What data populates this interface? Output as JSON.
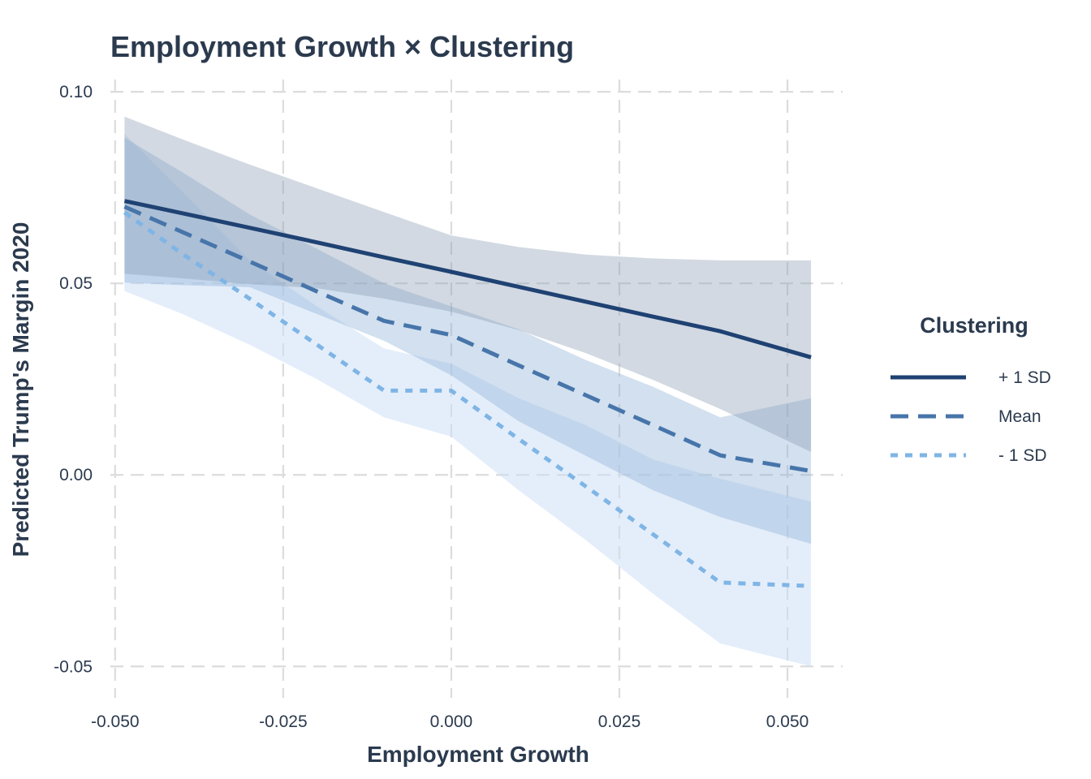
{
  "chart_data": {
    "type": "line",
    "title": "Employment Growth × Clustering",
    "xlabel": "Employment Growth",
    "ylabel": "Predicted Trump's Margin 2020",
    "xlim": [
      -0.0507,
      0.0582
    ],
    "ylim": [
      -0.0582,
      0.1032
    ],
    "x_ticks": [
      -0.05,
      -0.025,
      0.0,
      0.025,
      0.05
    ],
    "x_tick_labels": [
      "-0.050",
      "-0.025",
      "0.000",
      "0.025",
      "0.050"
    ],
    "y_ticks": [
      -0.05,
      0.0,
      0.05,
      0.1
    ],
    "y_tick_labels": [
      "-0.05",
      "0.00",
      "0.05",
      "0.10"
    ],
    "grid": true,
    "legend": {
      "title": "Clustering",
      "position": "right"
    },
    "x": [
      -0.0486,
      -0.04,
      -0.03,
      -0.02,
      -0.01,
      0.0,
      0.01,
      0.02,
      0.03,
      0.04,
      0.0535
    ],
    "series": [
      {
        "name": "+ 1 SD",
        "style": "solid",
        "color": "#1f4273",
        "band_color": "#8a9ab3",
        "band_opacity": 0.38,
        "values": [
          0.0715,
          0.0683,
          0.0645,
          0.0607,
          0.0568,
          0.053,
          0.0491,
          0.0452,
          0.0413,
          0.0375,
          0.0307
        ],
        "lower": [
          0.0525,
          0.0513,
          0.0498,
          0.0487,
          0.046,
          0.0426,
          0.0378,
          0.0318,
          0.0248,
          0.0172,
          0.006
        ],
        "upper": [
          0.0935,
          0.0876,
          0.081,
          0.0748,
          0.0686,
          0.0625,
          0.0595,
          0.0575,
          0.0565,
          0.056,
          0.056
        ]
      },
      {
        "name": "Mean",
        "style": "dashed",
        "color": "#4775aa",
        "band_color": "#8aaed6",
        "band_opacity": 0.38,
        "values": [
          0.07,
          0.0634,
          0.0557,
          0.0479,
          0.0402,
          0.0365,
          0.0286,
          0.0208,
          0.013,
          0.0051,
          0.001
        ],
        "lower": [
          0.0502,
          0.0495,
          0.049,
          0.042,
          0.035,
          0.026,
          0.014,
          0.005,
          -0.004,
          -0.011,
          -0.018
        ],
        "upper": [
          0.088,
          0.079,
          0.068,
          0.059,
          0.05,
          0.044,
          0.038,
          0.03,
          0.023,
          0.015,
          0.02
        ]
      },
      {
        "name": "- 1 SD",
        "style": "dotted",
        "color": "#7fb5e6",
        "band_color": "#c9def6",
        "band_opacity": 0.5,
        "values": [
          0.0685,
          0.0577,
          0.046,
          0.034,
          0.022,
          0.022,
          0.0094,
          -0.003,
          -0.0155,
          -0.0281,
          -0.029
        ],
        "lower": [
          0.048,
          0.042,
          0.034,
          0.025,
          0.015,
          0.01,
          -0.004,
          -0.017,
          -0.031,
          -0.044,
          -0.05
        ],
        "upper": [
          0.089,
          0.074,
          0.056,
          0.044,
          0.033,
          0.029,
          0.02,
          0.013,
          0.004,
          -0.001,
          -0.007
        ]
      }
    ]
  }
}
